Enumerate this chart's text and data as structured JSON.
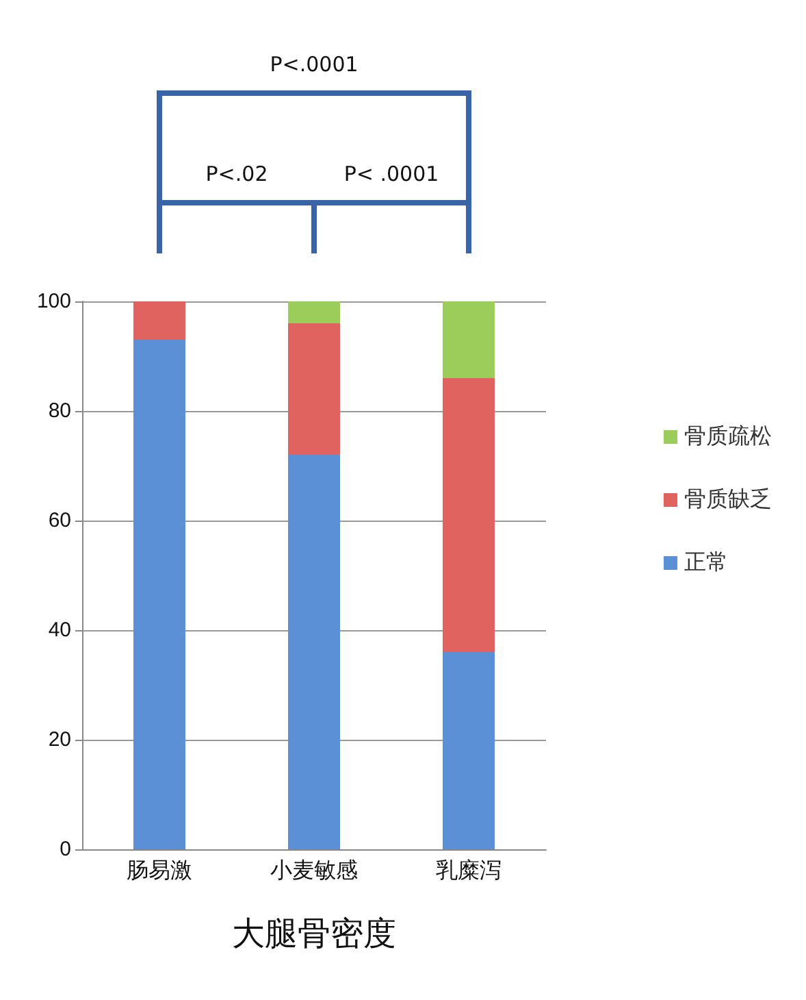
{
  "chart_data": {
    "type": "bar",
    "stacked": true,
    "categories": [
      "肠易激",
      "小麦敏感",
      "乳糜泻"
    ],
    "series": [
      {
        "name": "正常",
        "color": "#5b8fd6",
        "values": [
          93,
          72,
          36
        ]
      },
      {
        "name": "骨质缺乏",
        "color": "#e0635f",
        "values": [
          7,
          24,
          50
        ]
      },
      {
        "name": "骨质疏松",
        "color": "#9ccc5a",
        "values": [
          0,
          4,
          14
        ]
      }
    ],
    "xlabel": "大腿骨密度",
    "ylim": [
      0,
      100
    ],
    "yticks": [
      0,
      20,
      40,
      60,
      80,
      100
    ],
    "grid": "y",
    "legend": "right",
    "annotations": [
      "P<.0001",
      "P<.02",
      "P< .0001"
    ]
  }
}
